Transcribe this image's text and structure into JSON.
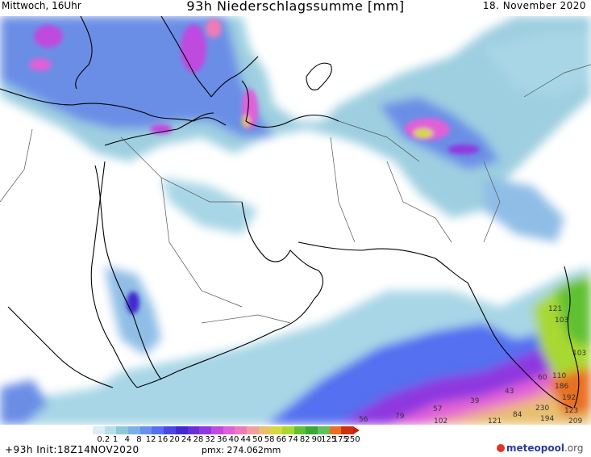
{
  "header": {
    "left": "Mittwoch, 16Uhr",
    "center": "93h Niederschlagssumme [mm]",
    "right": "18. November 2020"
  },
  "colorbar": {
    "labels": [
      "0.2",
      "1",
      "4",
      "8",
      "12",
      "16",
      "20",
      "24",
      "28",
      "32",
      "36",
      "40",
      "44",
      "50",
      "58",
      "66",
      "74",
      "82",
      "90",
      "125",
      "175",
      "250"
    ],
    "colors": [
      "#dbeef7",
      "#b8dfe9",
      "#8ccad9",
      "#7ab0e6",
      "#6890ec",
      "#5470f0",
      "#4c48e4",
      "#3f2bd0",
      "#6a2ed8",
      "#8f37e0",
      "#c04ae0",
      "#e060d8",
      "#f07ab8",
      "#f0a0a0",
      "#e8c070",
      "#d8d840",
      "#a8d830",
      "#60c030",
      "#38a838",
      "#60c060",
      "#e87020",
      "#d03010"
    ],
    "arrow_color": "#c82010"
  },
  "map_labels": [
    {
      "name": "value-label",
      "text": "121"
    },
    {
      "name": "value-label",
      "text": "103"
    },
    {
      "name": "value-label",
      "text": "110"
    },
    {
      "name": "value-label",
      "text": "103"
    },
    {
      "name": "value-label",
      "text": "186"
    },
    {
      "name": "value-label",
      "text": "192"
    },
    {
      "name": "value-label",
      "text": "230"
    },
    {
      "name": "value-label",
      "text": "123"
    },
    {
      "name": "value-label",
      "text": "194"
    },
    {
      "name": "value-label",
      "text": "209"
    },
    {
      "name": "value-label",
      "text": "43"
    },
    {
      "name": "value-label",
      "text": "60"
    },
    {
      "name": "value-label",
      "text": "39"
    },
    {
      "name": "value-label",
      "text": "84"
    },
    {
      "name": "value-label",
      "text": "79"
    },
    {
      "name": "value-label",
      "text": "102"
    },
    {
      "name": "value-label",
      "text": "121"
    },
    {
      "name": "value-label",
      "text": "57"
    },
    {
      "name": "value-label",
      "text": "56"
    }
  ],
  "footer": {
    "left": "+93h Init:18Z14NOV2020",
    "pmx": "pmx: 274.062mm",
    "logo_main": "meteopool",
    "logo_tld": ".org"
  }
}
